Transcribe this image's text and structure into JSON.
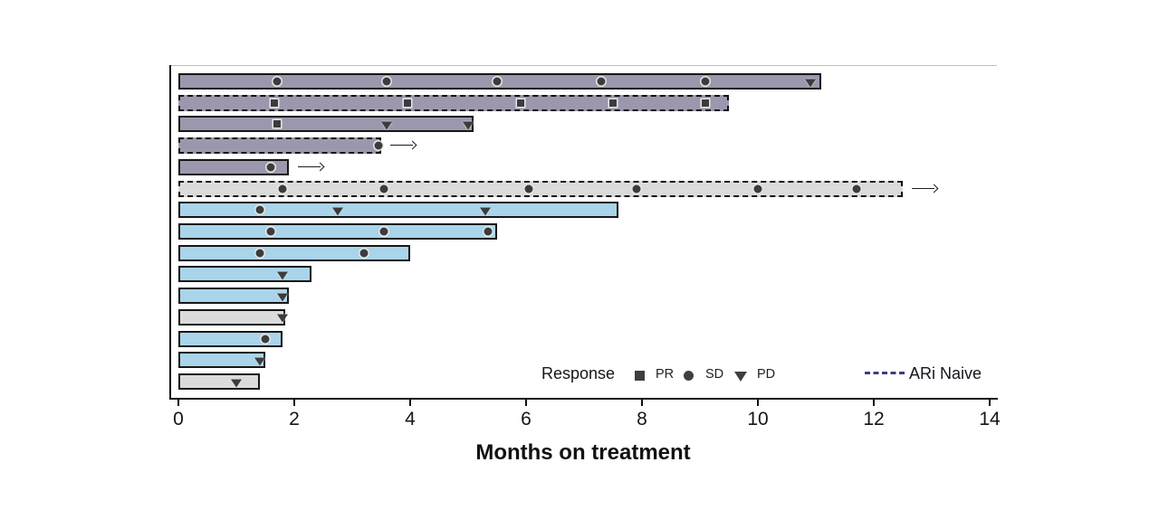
{
  "colors": {
    "purple": "#9d97ad",
    "blue": "#a9d4e9",
    "gray": "#dbdbdb",
    "bar_border": "#161616",
    "marker": "#3c3c3c",
    "ari_dash": "#383d85",
    "axis": "#111111"
  },
  "legend": {
    "response_label": "Response",
    "items": [
      {
        "marker": "square",
        "label": "PR"
      },
      {
        "marker": "circle",
        "label": "SD"
      },
      {
        "marker": "triangle-down",
        "label": "PD"
      }
    ],
    "ari_naive_label": "ARi Naive"
  },
  "chart_data": {
    "type": "bar",
    "subtype": "swimmer-plot",
    "orientation": "horizontal",
    "title": "",
    "xlabel": "Months on treatment",
    "ylabel": "",
    "xlim": [
      0,
      14
    ],
    "x_ticks": [
      0,
      2,
      4,
      6,
      8,
      10,
      12,
      14
    ],
    "grid": false,
    "legend_position": "bottom",
    "marker_meanings": {
      "PR": "square",
      "SD": "circle",
      "PD": "triangle-down"
    },
    "dashed_border_meaning": "ARi Naive",
    "arrow_meaning": "treatment ongoing",
    "bars": [
      {
        "row": 1,
        "length_months": 11.1,
        "color": "purple",
        "border": "solid",
        "ari_naive": false,
        "ongoing": false,
        "markers": [
          {
            "x": 1.7,
            "type": "SD"
          },
          {
            "x": 3.6,
            "type": "SD"
          },
          {
            "x": 5.5,
            "type": "SD"
          },
          {
            "x": 7.3,
            "type": "SD"
          },
          {
            "x": 9.1,
            "type": "SD"
          },
          {
            "x": 10.9,
            "type": "PD"
          }
        ]
      },
      {
        "row": 2,
        "length_months": 9.5,
        "color": "purple",
        "border": "dashed",
        "ari_naive": true,
        "ongoing": false,
        "markers": [
          {
            "x": 1.65,
            "type": "PR"
          },
          {
            "x": 3.95,
            "type": "PR"
          },
          {
            "x": 5.9,
            "type": "PR"
          },
          {
            "x": 7.5,
            "type": "PR"
          },
          {
            "x": 9.1,
            "type": "PR"
          }
        ]
      },
      {
        "row": 3,
        "length_months": 5.1,
        "color": "purple",
        "border": "solid",
        "ari_naive": false,
        "ongoing": false,
        "markers": [
          {
            "x": 1.7,
            "type": "PR"
          },
          {
            "x": 3.6,
            "type": "PD"
          },
          {
            "x": 5.0,
            "type": "PD"
          }
        ]
      },
      {
        "row": 4,
        "length_months": 3.5,
        "color": "purple",
        "border": "dashed",
        "ari_naive": true,
        "ongoing": true,
        "markers": [
          {
            "x": 3.45,
            "type": "SD"
          }
        ]
      },
      {
        "row": 5,
        "length_months": 1.9,
        "color": "purple",
        "border": "solid",
        "ari_naive": false,
        "ongoing": true,
        "markers": [
          {
            "x": 1.6,
            "type": "SD"
          }
        ]
      },
      {
        "row": 6,
        "length_months": 12.5,
        "color": "gray",
        "border": "dashed",
        "ari_naive": true,
        "ongoing": true,
        "markers": [
          {
            "x": 1.8,
            "type": "SD"
          },
          {
            "x": 3.55,
            "type": "SD"
          },
          {
            "x": 6.05,
            "type": "SD"
          },
          {
            "x": 7.9,
            "type": "SD"
          },
          {
            "x": 10.0,
            "type": "SD"
          },
          {
            "x": 11.7,
            "type": "SD"
          }
        ]
      },
      {
        "row": 7,
        "length_months": 7.6,
        "color": "blue",
        "border": "solid",
        "ari_naive": false,
        "ongoing": false,
        "markers": [
          {
            "x": 1.4,
            "type": "SD"
          },
          {
            "x": 2.75,
            "type": "PD"
          },
          {
            "x": 5.3,
            "type": "PD"
          }
        ]
      },
      {
        "row": 8,
        "length_months": 5.5,
        "color": "blue",
        "border": "solid",
        "ari_naive": false,
        "ongoing": false,
        "markers": [
          {
            "x": 1.6,
            "type": "SD"
          },
          {
            "x": 3.55,
            "type": "SD"
          },
          {
            "x": 5.35,
            "type": "SD"
          }
        ]
      },
      {
        "row": 9,
        "length_months": 4.0,
        "color": "blue",
        "border": "solid",
        "ari_naive": false,
        "ongoing": false,
        "markers": [
          {
            "x": 1.4,
            "type": "SD"
          },
          {
            "x": 3.2,
            "type": "SD"
          }
        ]
      },
      {
        "row": 10,
        "length_months": 2.3,
        "color": "blue",
        "border": "solid",
        "ari_naive": false,
        "ongoing": false,
        "markers": [
          {
            "x": 1.8,
            "type": "PD"
          }
        ]
      },
      {
        "row": 11,
        "length_months": 1.9,
        "color": "blue",
        "border": "solid",
        "ari_naive": false,
        "ongoing": false,
        "markers": [
          {
            "x": 1.8,
            "type": "PD"
          }
        ]
      },
      {
        "row": 12,
        "length_months": 1.85,
        "color": "gray",
        "border": "solid",
        "ari_naive": false,
        "ongoing": false,
        "markers": [
          {
            "x": 1.8,
            "type": "PD"
          }
        ]
      },
      {
        "row": 13,
        "length_months": 1.8,
        "color": "blue",
        "border": "solid",
        "ari_naive": false,
        "ongoing": false,
        "markers": [
          {
            "x": 1.5,
            "type": "SD"
          }
        ]
      },
      {
        "row": 14,
        "length_months": 1.5,
        "color": "blue",
        "border": "solid",
        "ari_naive": false,
        "ongoing": false,
        "markers": [
          {
            "x": 1.4,
            "type": "PD"
          }
        ]
      },
      {
        "row": 15,
        "length_months": 1.4,
        "color": "gray",
        "border": "solid",
        "ari_naive": false,
        "ongoing": false,
        "markers": [
          {
            "x": 1.0,
            "type": "PD"
          }
        ]
      }
    ]
  }
}
